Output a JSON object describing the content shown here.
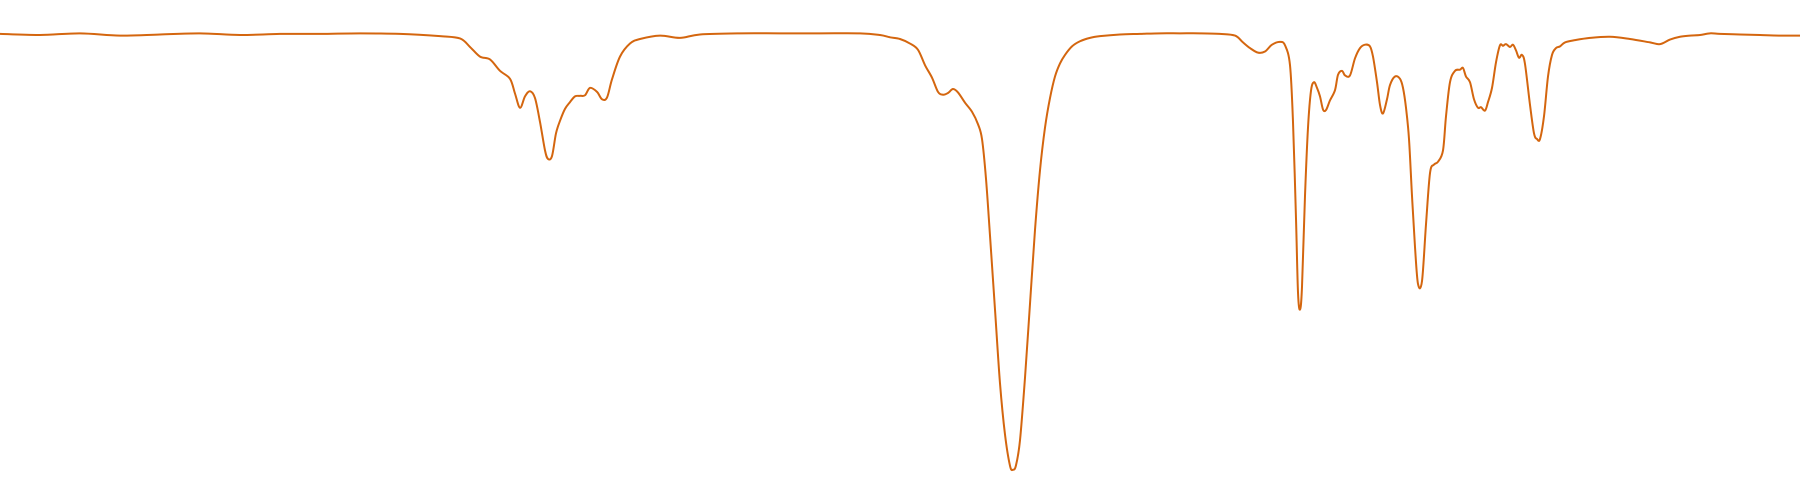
{
  "chart_data": {
    "type": "line",
    "title": "",
    "xlabel": "",
    "ylabel": "",
    "grid": false,
    "legend": "none",
    "xlim": [
      0,
      1800
    ],
    "ylim": [
      0,
      0.82
    ],
    "color": "#d4660f",
    "series": [
      {
        "values": [
          [
            0,
            0.785
          ],
          [
            40,
            0.783
          ],
          [
            80,
            0.786
          ],
          [
            120,
            0.782
          ],
          [
            160,
            0.784
          ],
          [
            200,
            0.786
          ],
          [
            240,
            0.783
          ],
          [
            280,
            0.785
          ],
          [
            320,
            0.785
          ],
          [
            360,
            0.786
          ],
          [
            400,
            0.785
          ],
          [
            440,
            0.781
          ],
          [
            460,
            0.777
          ],
          [
            470,
            0.762
          ],
          [
            480,
            0.745
          ],
          [
            490,
            0.74
          ],
          [
            500,
            0.72
          ],
          [
            510,
            0.706
          ],
          [
            515,
            0.68
          ],
          [
            520,
            0.655
          ],
          [
            525,
            0.675
          ],
          [
            530,
            0.684
          ],
          [
            535,
            0.672
          ],
          [
            540,
            0.63
          ],
          [
            545,
            0.58
          ],
          [
            548,
            0.565
          ],
          [
            552,
            0.57
          ],
          [
            556,
            0.61
          ],
          [
            560,
            0.632
          ],
          [
            565,
            0.653
          ],
          [
            570,
            0.665
          ],
          [
            575,
            0.675
          ],
          [
            580,
            0.676
          ],
          [
            585,
            0.677
          ],
          [
            590,
            0.69
          ],
          [
            597,
            0.683
          ],
          [
            602,
            0.67
          ],
          [
            607,
            0.673
          ],
          [
            612,
            0.705
          ],
          [
            620,
            0.745
          ],
          [
            630,
            0.768
          ],
          [
            640,
            0.776
          ],
          [
            660,
            0.782
          ],
          [
            680,
            0.778
          ],
          [
            700,
            0.784
          ],
          [
            740,
            0.786
          ],
          [
            780,
            0.786
          ],
          [
            820,
            0.786
          ],
          [
            860,
            0.786
          ],
          [
            880,
            0.783
          ],
          [
            890,
            0.779
          ],
          [
            900,
            0.776
          ],
          [
            910,
            0.768
          ],
          [
            918,
            0.757
          ],
          [
            925,
            0.73
          ],
          [
            932,
            0.708
          ],
          [
            938,
            0.683
          ],
          [
            943,
            0.678
          ],
          [
            948,
            0.681
          ],
          [
            953,
            0.688
          ],
          [
            958,
            0.682
          ],
          [
            965,
            0.664
          ],
          [
            972,
            0.648
          ],
          [
            978,
            0.626
          ],
          [
            982,
            0.6
          ],
          [
            986,
            0.53
          ],
          [
            990,
            0.43
          ],
          [
            995,
            0.3
          ],
          [
            1000,
            0.17
          ],
          [
            1005,
            0.08
          ],
          [
            1010,
            0.025
          ],
          [
            1013,
            0.018
          ],
          [
            1016,
            0.026
          ],
          [
            1020,
            0.07
          ],
          [
            1025,
            0.18
          ],
          [
            1030,
            0.31
          ],
          [
            1035,
            0.44
          ],
          [
            1040,
            0.545
          ],
          [
            1045,
            0.62
          ],
          [
            1050,
            0.672
          ],
          [
            1055,
            0.71
          ],
          [
            1060,
            0.733
          ],
          [
            1065,
            0.748
          ],
          [
            1072,
            0.763
          ],
          [
            1080,
            0.772
          ],
          [
            1090,
            0.778
          ],
          [
            1100,
            0.781
          ],
          [
            1120,
            0.784
          ],
          [
            1140,
            0.785
          ],
          [
            1160,
            0.786
          ],
          [
            1180,
            0.786
          ],
          [
            1200,
            0.786
          ],
          [
            1220,
            0.785
          ],
          [
            1235,
            0.782
          ],
          [
            1243,
            0.77
          ],
          [
            1250,
            0.76
          ],
          [
            1258,
            0.752
          ],
          [
            1265,
            0.754
          ],
          [
            1272,
            0.766
          ],
          [
            1280,
            0.771
          ],
          [
            1285,
            0.765
          ],
          [
            1290,
            0.73
          ],
          [
            1293,
            0.63
          ],
          [
            1296,
            0.46
          ],
          [
            1298,
            0.33
          ],
          [
            1300,
            0.3
          ],
          [
            1302,
            0.34
          ],
          [
            1305,
            0.5
          ],
          [
            1308,
            0.62
          ],
          [
            1311,
            0.685
          ],
          [
            1314,
            0.7
          ],
          [
            1317,
            0.69
          ],
          [
            1320,
            0.675
          ],
          [
            1323,
            0.652
          ],
          [
            1326,
            0.651
          ],
          [
            1330,
            0.668
          ],
          [
            1335,
            0.686
          ],
          [
            1338,
            0.713
          ],
          [
            1342,
            0.72
          ],
          [
            1345,
            0.712
          ],
          [
            1350,
            0.712
          ],
          [
            1355,
            0.742
          ],
          [
            1360,
            0.76
          ],
          [
            1365,
            0.766
          ],
          [
            1370,
            0.763
          ],
          [
            1373,
            0.745
          ],
          [
            1377,
            0.7
          ],
          [
            1380,
            0.66
          ],
          [
            1383,
            0.645
          ],
          [
            1387,
            0.67
          ],
          [
            1390,
            0.695
          ],
          [
            1395,
            0.71
          ],
          [
            1400,
            0.706
          ],
          [
            1403,
            0.69
          ],
          [
            1406,
            0.655
          ],
          [
            1409,
            0.6
          ],
          [
            1412,
            0.5
          ],
          [
            1415,
            0.41
          ],
          [
            1418,
            0.345
          ],
          [
            1422,
            0.35
          ],
          [
            1426,
            0.45
          ],
          [
            1430,
            0.54
          ],
          [
            1434,
            0.555
          ],
          [
            1438,
            0.56
          ],
          [
            1443,
            0.58
          ],
          [
            1446,
            0.64
          ],
          [
            1450,
            0.7
          ],
          [
            1455,
            0.72
          ],
          [
            1460,
            0.722
          ],
          [
            1463,
            0.725
          ],
          [
            1466,
            0.71
          ],
          [
            1470,
            0.7
          ],
          [
            1474,
            0.67
          ],
          [
            1478,
            0.655
          ],
          [
            1481,
            0.656
          ],
          [
            1485,
            0.65
          ],
          [
            1488,
            0.665
          ],
          [
            1492,
            0.69
          ],
          [
            1496,
            0.735
          ],
          [
            1500,
            0.765
          ],
          [
            1503,
            0.764
          ],
          [
            1506,
            0.767
          ],
          [
            1510,
            0.762
          ],
          [
            1513,
            0.766
          ],
          [
            1516,
            0.756
          ],
          [
            1519,
            0.743
          ],
          [
            1522,
            0.748
          ],
          [
            1525,
            0.732
          ],
          [
            1530,
            0.66
          ],
          [
            1534,
            0.61
          ],
          [
            1537,
            0.6
          ],
          [
            1540,
            0.6
          ],
          [
            1544,
            0.64
          ],
          [
            1548,
            0.71
          ],
          [
            1552,
            0.748
          ],
          [
            1556,
            0.76
          ],
          [
            1560,
            0.763
          ],
          [
            1565,
            0.77
          ],
          [
            1575,
            0.774
          ],
          [
            1590,
            0.778
          ],
          [
            1610,
            0.78
          ],
          [
            1630,
            0.776
          ],
          [
            1650,
            0.77
          ],
          [
            1660,
            0.767
          ],
          [
            1670,
            0.775
          ],
          [
            1680,
            0.78
          ],
          [
            1690,
            0.782
          ],
          [
            1700,
            0.783
          ],
          [
            1710,
            0.786
          ],
          [
            1720,
            0.785
          ],
          [
            1740,
            0.784
          ],
          [
            1760,
            0.783
          ],
          [
            1780,
            0.782
          ],
          [
            1800,
            0.782
          ]
        ]
      }
    ]
  }
}
